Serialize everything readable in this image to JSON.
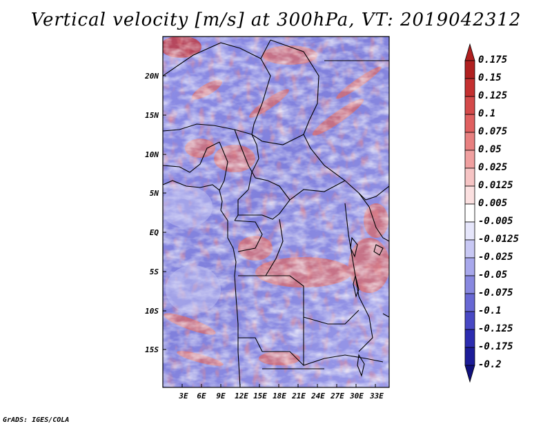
{
  "title": "Vertical velocity [m/s] at 300hPa, VT: 2019042312",
  "credit": "GrADS: IGES/COLA",
  "map": {
    "variable": "Vertical velocity",
    "units": "m/s",
    "level": "300hPa",
    "valid_time": "2019042312",
    "lat_labels": [
      "20N",
      "15N",
      "10N",
      "5N",
      "EQ",
      "5S",
      "10S",
      "15S"
    ],
    "lon_labels": [
      "3E",
      "6E",
      "9E",
      "12E",
      "15E",
      "18E",
      "21E",
      "24E",
      "27E",
      "30E",
      "33E"
    ],
    "lat_range": [
      -20,
      24
    ],
    "lon_range": [
      0,
      35
    ],
    "colorbar_labels": [
      "0.175",
      "0.15",
      "0.125",
      "0.1",
      "0.075",
      "0.05",
      "0.025",
      "0.0125",
      "0.005",
      "-0.005",
      "-0.0125",
      "-0.025",
      "-0.05",
      "-0.075",
      "-0.1",
      "-0.125",
      "-0.175",
      "-0.2"
    ],
    "colorbar_colors": [
      "#b02020",
      "#c43030",
      "#d44a4a",
      "#e06060",
      "#e88080",
      "#f0a0a0",
      "#f6c4c4",
      "#fbe0e0",
      "#ffffff",
      "#e6e6fb",
      "#c8c8f4",
      "#a8a8ec",
      "#8888e0",
      "#6868d4",
      "#4848c4",
      "#2c2cb0",
      "#1c1c98"
    ]
  }
}
